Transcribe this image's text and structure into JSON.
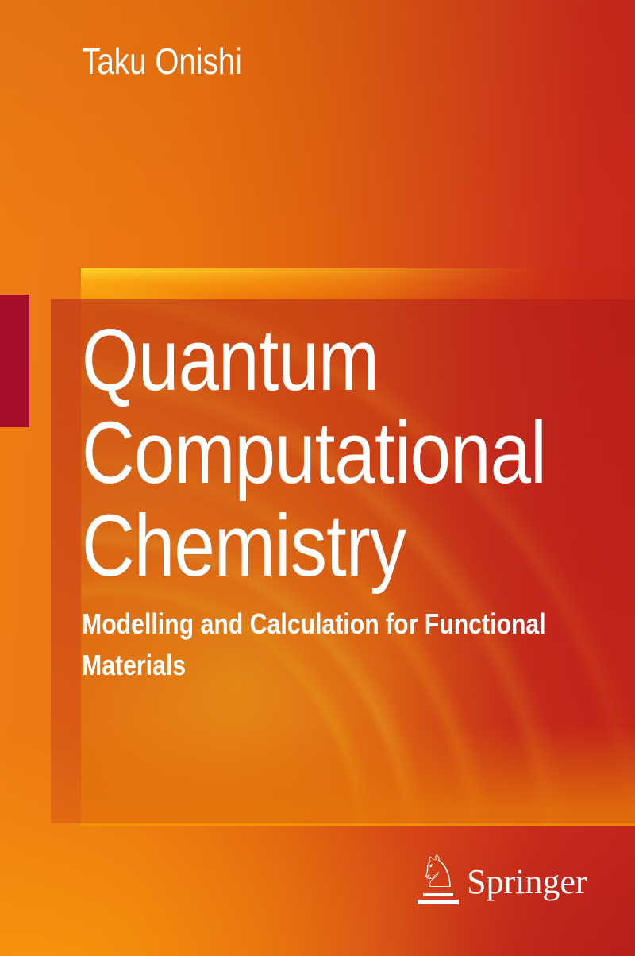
{
  "cover": {
    "author": "Taku Onishi",
    "title_lines": [
      "Quantum",
      "Computational",
      "Chemistry"
    ],
    "subtitle_lines": [
      "Modelling and Calculation for Functional",
      "Materials"
    ]
  },
  "publisher": {
    "name": "Springer",
    "horse_glyph": "♘"
  },
  "colors": {
    "orange_top_left": "#EE7D13",
    "orange_bottom_left": "#F59B00",
    "red_top_right": "#C8281C",
    "red_bottom_right": "#BC1A20",
    "accent_bar": "#A60D2B",
    "swirl_yellow": "#FFC90B",
    "title_text": "#FFFFFF"
  }
}
